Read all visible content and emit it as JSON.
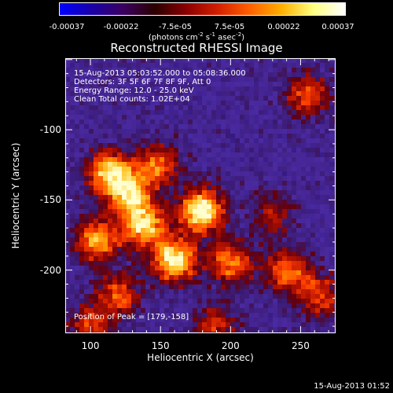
{
  "colorbar": {
    "ticks": [
      "-0.00037",
      "-0.00022",
      "-7.5e-05",
      "7.5e-05",
      "0.00022",
      "0.00037"
    ],
    "units_prefix": "(photons cm",
    "units_exp1": "-2",
    "units_mid1": " s",
    "units_exp2": "-1",
    "units_mid2": " asec",
    "units_exp3": "-2",
    "units_suffix": ")",
    "stops": [
      "#0000ff",
      "#1a00a8",
      "#3a0060",
      "#2a0000",
      "#8b0000",
      "#d42000",
      "#ff6000",
      "#ffb000",
      "#ffff80",
      "#ffffff"
    ]
  },
  "chart_data": {
    "type": "heatmap",
    "title": "Reconstructed RHESSI Image",
    "xlabel": "Heliocentric X (arcsec)",
    "ylabel": "Heliocentric Y (arcsec)",
    "xlim": [
      82,
      275
    ],
    "ylim": [
      -245,
      -49
    ],
    "x_ticks": [
      "100",
      "150",
      "200",
      "250"
    ],
    "y_ticks": [
      "-100",
      "-150",
      "-200"
    ],
    "x_tick_values": [
      100,
      150,
      200,
      250
    ],
    "y_tick_values": [
      -100,
      -150,
      -200
    ],
    "peak_x": 179,
    "peak_y": -158,
    "info_lines": [
      "15-Aug-2013 05:03:52.000 to 05:08:36.000",
      "Detectors: 3F 5F 6F 7F 8F 9F, Att 0",
      "Energy Range: 12.0 - 25.0 keV",
      "Clean     Total counts: 1.02E+04"
    ],
    "peak_label": "Position of Peak = [179,-158]",
    "sources": [
      {
        "x": 179,
        "y": -158,
        "intensity": 1.0
      },
      {
        "x": 160,
        "y": -193,
        "intensity": 0.95
      },
      {
        "x": 138,
        "y": -168,
        "intensity": 0.85
      },
      {
        "x": 113,
        "y": -130,
        "intensity": 0.8
      },
      {
        "x": 128,
        "y": -145,
        "intensity": 0.75
      },
      {
        "x": 105,
        "y": -178,
        "intensity": 0.75
      },
      {
        "x": 148,
        "y": -125,
        "intensity": 0.6
      },
      {
        "x": 200,
        "y": -195,
        "intensity": 0.65
      },
      {
        "x": 240,
        "y": -200,
        "intensity": 0.6
      },
      {
        "x": 262,
        "y": -218,
        "intensity": 0.55
      },
      {
        "x": 120,
        "y": -218,
        "intensity": 0.55
      },
      {
        "x": 100,
        "y": -240,
        "intensity": 0.5
      },
      {
        "x": 255,
        "y": -75,
        "intensity": 0.55
      },
      {
        "x": 190,
        "y": -240,
        "intensity": 0.45
      },
      {
        "x": 230,
        "y": -160,
        "intensity": 0.35
      }
    ]
  },
  "footer": "15-Aug-2013 01:52"
}
